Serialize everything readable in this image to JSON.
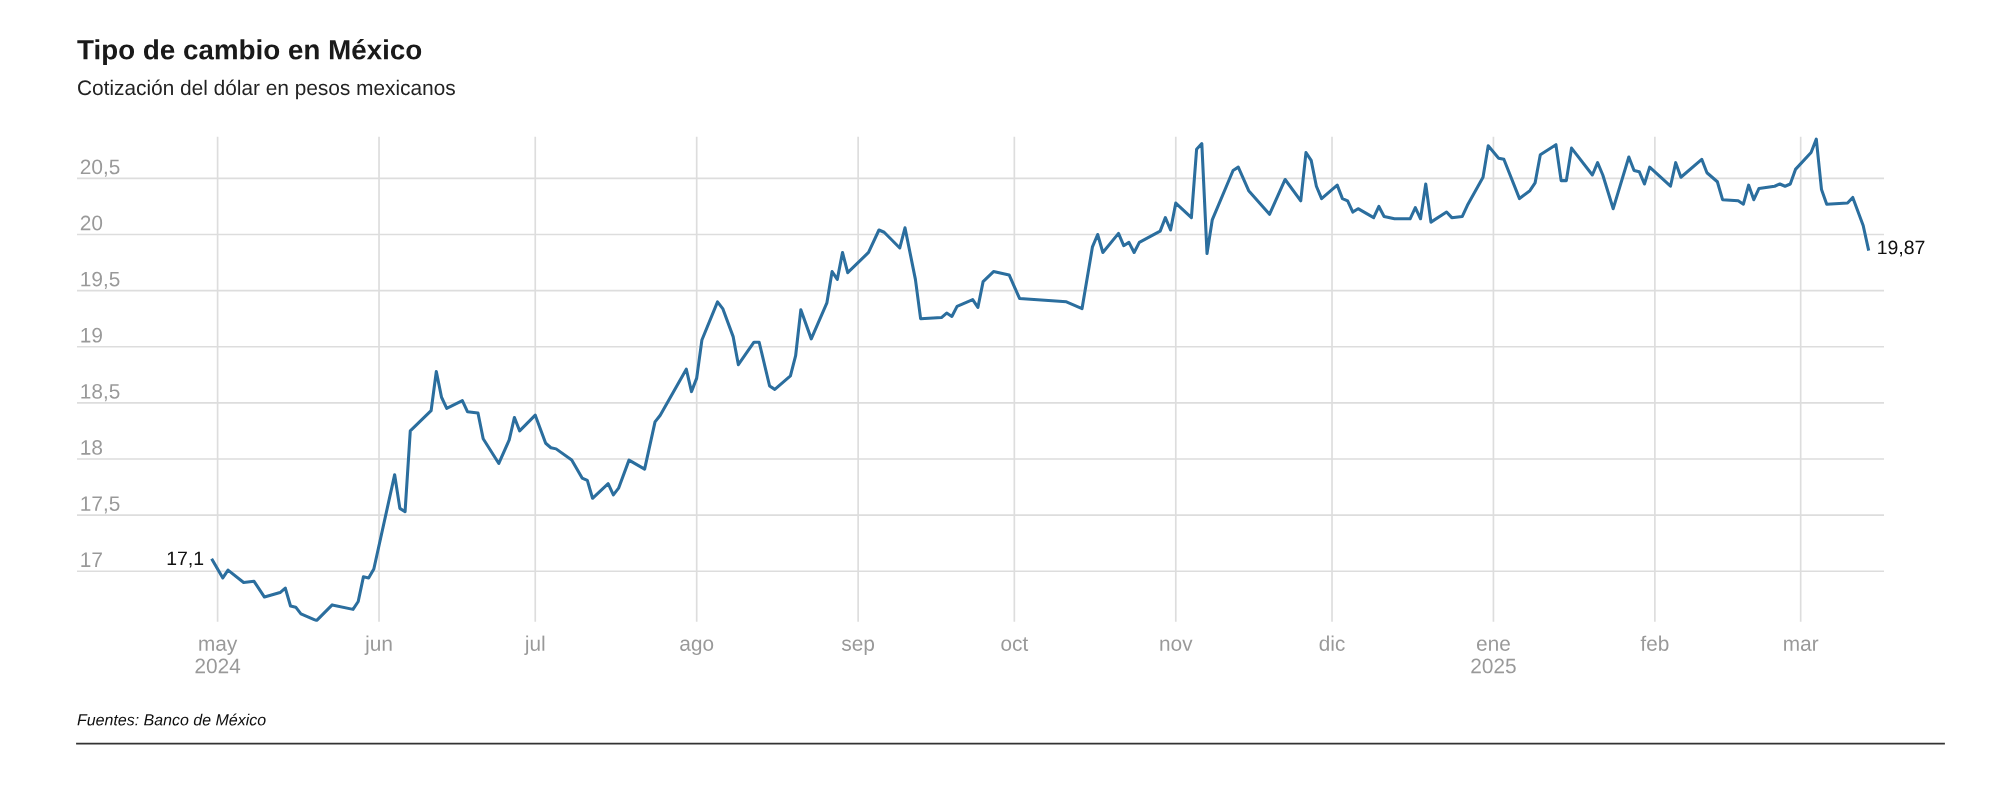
{
  "chart_data": {
    "type": "line",
    "title": "Tipo de cambio en México",
    "subtitle": "Cotización del dólar en pesos mexicanos",
    "x": [
      "2024-04-30",
      "2024-05-02",
      "2024-05-03",
      "2024-05-06",
      "2024-05-08",
      "2024-05-10",
      "2024-05-13",
      "2024-05-14",
      "2024-05-15",
      "2024-05-16",
      "2024-05-17",
      "2024-05-20",
      "2024-05-23",
      "2024-05-27",
      "2024-05-28",
      "2024-05-29",
      "2024-05-30",
      "2024-05-31",
      "2024-06-04",
      "2024-06-05",
      "2024-06-06",
      "2024-06-07",
      "2024-06-11",
      "2024-06-12",
      "2024-06-13",
      "2024-06-14",
      "2024-06-17",
      "2024-06-18",
      "2024-06-20",
      "2024-06-21",
      "2024-06-24",
      "2024-06-26",
      "2024-06-27",
      "2024-06-28",
      "2024-07-01",
      "2024-07-03",
      "2024-07-04",
      "2024-07-05",
      "2024-07-08",
      "2024-07-10",
      "2024-07-11",
      "2024-07-12",
      "2024-07-15",
      "2024-07-16",
      "2024-07-17",
      "2024-07-19",
      "2024-07-22",
      "2024-07-24",
      "2024-07-25",
      "2024-07-30",
      "2024-07-31",
      "2024-08-01",
      "2024-08-02",
      "2024-08-05",
      "2024-08-06",
      "2024-08-08",
      "2024-08-09",
      "2024-08-12",
      "2024-08-13",
      "2024-08-15",
      "2024-08-16",
      "2024-08-19",
      "2024-08-20",
      "2024-08-21",
      "2024-08-23",
      "2024-08-26",
      "2024-08-27",
      "2024-08-28",
      "2024-08-29",
      "2024-08-30",
      "2024-09-03",
      "2024-09-05",
      "2024-09-06",
      "2024-09-09",
      "2024-09-10",
      "2024-09-12",
      "2024-09-13",
      "2024-09-17",
      "2024-09-18",
      "2024-09-19",
      "2024-09-20",
      "2024-09-23",
      "2024-09-24",
      "2024-09-25",
      "2024-09-27",
      "2024-09-30",
      "2024-10-02",
      "2024-10-11",
      "2024-10-14",
      "2024-10-16",
      "2024-10-17",
      "2024-10-18",
      "2024-10-21",
      "2024-10-22",
      "2024-10-23",
      "2024-10-24",
      "2024-10-25",
      "2024-10-29",
      "2024-10-30",
      "2024-10-31",
      "2024-11-01",
      "2024-11-04",
      "2024-11-05",
      "2024-11-06",
      "2024-11-07",
      "2024-11-08",
      "2024-11-12",
      "2024-11-13",
      "2024-11-15",
      "2024-11-19",
      "2024-11-22",
      "2024-11-25",
      "2024-11-26",
      "2024-11-27",
      "2024-11-28",
      "2024-11-29",
      "2024-12-02",
      "2024-12-03",
      "2024-12-04",
      "2024-12-05",
      "2024-12-06",
      "2024-12-09",
      "2024-12-10",
      "2024-12-11",
      "2024-12-13",
      "2024-12-16",
      "2024-12-17",
      "2024-12-18",
      "2024-12-19",
      "2024-12-20",
      "2024-12-23",
      "2024-12-24",
      "2024-12-26",
      "2024-12-27",
      "2024-12-30",
      "2024-12-31",
      "2025-01-02",
      "2025-01-03",
      "2025-01-06",
      "2025-01-08",
      "2025-01-09",
      "2025-01-10",
      "2025-01-13",
      "2025-01-14",
      "2025-01-15",
      "2025-01-16",
      "2025-01-20",
      "2025-01-21",
      "2025-01-22",
      "2025-01-24",
      "2025-01-27",
      "2025-01-28",
      "2025-01-29",
      "2025-01-30",
      "2025-01-31",
      "2025-02-04",
      "2025-02-05",
      "2025-02-06",
      "2025-02-10",
      "2025-02-11",
      "2025-02-13",
      "2025-02-14",
      "2025-02-17",
      "2025-02-18",
      "2025-02-19",
      "2025-02-20",
      "2025-02-21",
      "2025-02-24",
      "2025-02-25",
      "2025-02-26",
      "2025-02-27",
      "2025-02-28",
      "2025-03-03",
      "2025-03-04",
      "2025-03-05",
      "2025-03-06",
      "2025-03-10",
      "2025-03-11",
      "2025-03-13",
      "2025-03-14"
    ],
    "series": [
      {
        "color": "#2b6e9e",
        "values": [
          17.1,
          16.94,
          17.01,
          16.9,
          16.91,
          16.77,
          16.81,
          16.85,
          16.69,
          16.68,
          16.62,
          16.56,
          16.7,
          16.66,
          16.73,
          16.95,
          16.94,
          17.02,
          17.86,
          17.56,
          17.53,
          18.25,
          18.43,
          18.78,
          18.55,
          18.45,
          18.52,
          18.42,
          18.41,
          18.18,
          17.96,
          18.17,
          18.37,
          18.25,
          18.39,
          18.14,
          18.1,
          18.09,
          17.99,
          17.83,
          17.81,
          17.65,
          17.78,
          17.68,
          17.74,
          17.99,
          17.91,
          18.33,
          18.39,
          18.8,
          18.6,
          18.72,
          19.06,
          19.4,
          19.34,
          19.09,
          18.84,
          19.04,
          19.04,
          18.65,
          18.62,
          18.74,
          18.92,
          19.33,
          19.07,
          19.39,
          19.67,
          19.6,
          19.84,
          19.66,
          19.84,
          20.04,
          20.02,
          19.88,
          20.06,
          19.6,
          19.25,
          19.26,
          19.3,
          19.27,
          19.36,
          19.42,
          19.35,
          19.58,
          19.67,
          19.64,
          19.43,
          19.4,
          19.34,
          19.89,
          20.0,
          19.84,
          20.01,
          19.9,
          19.93,
          19.84,
          19.93,
          20.03,
          20.15,
          20.04,
          20.28,
          20.15,
          20.76,
          20.81,
          19.83,
          20.13,
          20.57,
          20.6,
          20.39,
          20.18,
          20.49,
          20.3,
          20.73,
          20.66,
          20.43,
          20.32,
          20.44,
          20.32,
          20.3,
          20.2,
          20.23,
          20.15,
          20.25,
          20.16,
          20.14,
          20.14,
          20.24,
          20.14,
          20.45,
          20.11,
          20.2,
          20.15,
          20.16,
          20.26,
          20.51,
          20.79,
          20.68,
          20.67,
          20.32,
          20.39,
          20.46,
          20.71,
          20.8,
          20.48,
          20.48,
          20.77,
          20.53,
          20.64,
          20.53,
          20.23,
          20.69,
          20.57,
          20.56,
          20.45,
          20.6,
          20.43,
          20.64,
          20.51,
          20.67,
          20.55,
          20.47,
          20.31,
          20.3,
          20.27,
          20.44,
          20.31,
          20.41,
          20.43,
          20.45,
          20.43,
          20.45,
          20.58,
          20.73,
          20.85,
          20.4,
          20.27,
          20.28,
          20.33,
          20.08,
          19.87
        ]
      }
    ],
    "xlim": [
      "2024-04-04",
      "2025-03-17"
    ],
    "xticks": [
      {
        "value": "2024-05-01",
        "label": "may\n2024"
      },
      {
        "value": "2024-06-01",
        "label": "jun"
      },
      {
        "value": "2024-07-01",
        "label": "jul"
      },
      {
        "value": "2024-08-01",
        "label": "ago"
      },
      {
        "value": "2024-09-01",
        "label": "sep"
      },
      {
        "value": "2024-10-01",
        "label": "oct"
      },
      {
        "value": "2024-11-01",
        "label": "nov"
      },
      {
        "value": "2024-12-01",
        "label": "dic"
      },
      {
        "value": "2025-01-01",
        "label": "ene\n2025"
      },
      {
        "value": "2025-02-01",
        "label": "feb"
      },
      {
        "value": "2025-03-01",
        "label": "mar"
      }
    ],
    "ylim": [
      16.55,
      20.87
    ],
    "yticks": [
      {
        "value": 17,
        "label": "17"
      },
      {
        "value": 17.5,
        "label": "17,5"
      },
      {
        "value": 18,
        "label": "18"
      },
      {
        "value": 18.5,
        "label": "18,5"
      },
      {
        "value": 19,
        "label": "19"
      },
      {
        "value": 19.5,
        "label": "19,5"
      },
      {
        "value": 20,
        "label": "20"
      },
      {
        "value": 20.5,
        "label": "20,5"
      }
    ],
    "grid": true,
    "marker": "none",
    "line_style": "solid",
    "annotations": [
      {
        "text": "17,1",
        "x": "2024-04-30",
        "y": 17.1
      },
      {
        "text": "19,87",
        "x": "2025-03-14",
        "y": 19.87
      },
      "Fuentes: Banco de México"
    ]
  }
}
